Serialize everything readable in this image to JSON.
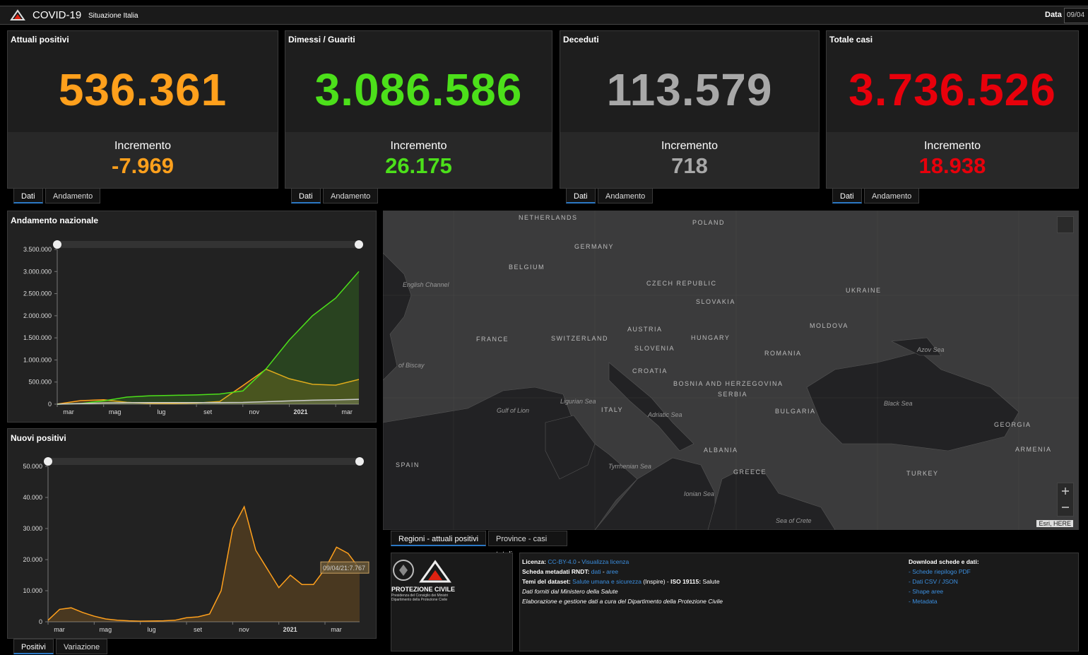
{
  "header": {
    "title": "COVID-19",
    "subtitle": "Situazione Italia",
    "date_label": "Data",
    "date_value": "09/04"
  },
  "cards": [
    {
      "title": "Attuali positivi",
      "value": "536.361",
      "increment_label": "Incremento",
      "increment": "-7.969",
      "color": "#ffa01c",
      "tabs": [
        "Dati",
        "Andamento"
      ]
    },
    {
      "title": "Dimessi / Guariti",
      "value": "3.086.586",
      "increment_label": "Incremento",
      "increment": "26.175",
      "color": "#4ce01a",
      "tabs": [
        "Dati",
        "Andamento"
      ]
    },
    {
      "title": "Deceduti",
      "value": "113.579",
      "increment_label": "Incremento",
      "increment": "718",
      "color": "#a8a8a8",
      "tabs": [
        "Dati",
        "Andamento"
      ]
    },
    {
      "title": "Totale casi",
      "value": "3.736.526",
      "increment_label": "Incremento",
      "increment": "18.938",
      "color": "#e8000b",
      "tabs": [
        "Dati",
        "Andamento"
      ]
    }
  ],
  "chart_data": [
    {
      "type": "area",
      "title": "Andamento nazionale",
      "categories": [
        "mar",
        null,
        "mag",
        null,
        "lug",
        null,
        "set",
        null,
        "nov",
        null,
        "2021",
        null,
        "mar",
        null
      ],
      "series": [
        {
          "color": "#ffa01c",
          "values": [
            1500,
            80000,
            100000,
            42000,
            15000,
            12000,
            25000,
            60000,
            420000,
            790000,
            575000,
            450000,
            430000,
            560000
          ]
        },
        {
          "color": "#4ce01a",
          "values": [
            0,
            15000,
            75000,
            160000,
            190000,
            200000,
            210000,
            230000,
            300000,
            800000,
            1450000,
            2000000,
            2400000,
            3000000
          ]
        },
        {
          "color": "#cccccc",
          "values": [
            0,
            13000,
            28000,
            33000,
            35000,
            35000,
            35500,
            36000,
            39000,
            56000,
            74000,
            89000,
            98000,
            110000
          ]
        }
      ],
      "ylim": [
        0,
        3500000
      ],
      "yticks": [
        0,
        {
          "value": 500000,
          "label": "500.000"
        },
        {
          "value": 1000000,
          "label": "1.000.000"
        },
        {
          "value": 1500000,
          "label": "1.500.000"
        },
        {
          "value": 2000000,
          "label": "2.000.000"
        },
        {
          "value": 2500000,
          "label": "2.500.000"
        },
        {
          "value": 3000000,
          "label": "3.000.000"
        },
        {
          "value": 3500000,
          "label": "3.500.000"
        }
      ],
      "grid": false,
      "tabs": []
    },
    {
      "type": "area",
      "title": "Nuovi positivi",
      "categories": [
        "mar",
        null,
        null,
        null,
        "mag",
        null,
        null,
        null,
        "lug",
        null,
        null,
        null,
        "set",
        null,
        null,
        null,
        "nov",
        null,
        null,
        null,
        "2021",
        null,
        null,
        null,
        "mar",
        null,
        null,
        null
      ],
      "series": [
        {
          "color": "#ffa01c",
          "values": [
            500,
            4000,
            4500,
            3000,
            1800,
            900,
            500,
            300,
            200,
            250,
            300,
            500,
            1300,
            1600,
            2500,
            10000,
            30000,
            37000,
            23000,
            17000,
            11000,
            15000,
            12000,
            12000,
            17000,
            24000,
            22000,
            17000
          ]
        }
      ],
      "ylim": [
        0,
        50000
      ],
      "yticks": [
        0,
        {
          "value": 10000,
          "label": "10.000"
        },
        {
          "value": 20000,
          "label": "20.000"
        },
        {
          "value": 30000,
          "label": "30.000"
        },
        {
          "value": 40000,
          "label": "40.000"
        },
        {
          "value": 50000,
          "label": "50.000"
        }
      ],
      "grid": false,
      "annotation": "09/04/21:7.767",
      "tabs": [
        "Positivi",
        "Variazione"
      ]
    }
  ],
  "map": {
    "labels": [
      "NETHERLANDS",
      "POLAND",
      "GERMANY",
      "BELGIUM",
      "English Channel",
      "CZECH REPUBLIC",
      "UKRAINE",
      "SLOVAKIA",
      "MOLDOVA",
      "FRANCE",
      "SWITZERLAND",
      "AUSTRIA",
      "HUNGARY",
      "SLOVENIA",
      "ROMANIA",
      "Azov Sea",
      "of Biscay",
      "CROATIA",
      "BOSNIA AND HERZEGOVINA",
      "SERBIA",
      "Black Sea",
      "Ligurian Sea",
      "Gulf of Lion",
      "ITALY",
      "Adriatic Sea",
      "BULGARIA",
      "GEORGIA",
      "ALBANIA",
      "ARMENIA",
      "SPAIN",
      "Tyrrhenian Sea",
      "GREECE",
      "TURKEY",
      "Ionian Sea",
      "Sea of Crete"
    ],
    "attribution": "Esri, HERE",
    "tabs": [
      "Regioni - attuali positivi",
      "Province - casi totali"
    ]
  },
  "footer": {
    "logo_text": "PROTEZIONE CIVILE",
    "logo_sub": [
      "Presidenza del Consiglio dei Ministri",
      "Dipartimento della Protezione Civile"
    ],
    "lines": [
      [
        {
          "t": "Licenza:",
          "s": "b"
        },
        {
          "t": " CC-BY-4.0",
          "s": "a"
        },
        {
          "t": " - "
        },
        {
          "t": "Visualizza licenza",
          "s": "a"
        }
      ],
      [
        {
          "t": "Scheda metadati RNDT:",
          "s": "b"
        },
        {
          "t": " dati",
          "s": "a"
        },
        {
          "t": " - "
        },
        {
          "t": "aree",
          "s": "a"
        }
      ],
      [
        {
          "t": "Temi del dataset:",
          "s": "b"
        },
        {
          "t": " Salute umana e sicurezza",
          "s": "a"
        },
        {
          "t": " (Inspire) - "
        },
        {
          "t": "ISO 19115:",
          "s": "b"
        },
        {
          "t": " Salute"
        }
      ],
      [
        {
          "t": "Dati forniti dal Ministero della Salute",
          "s": "i"
        }
      ],
      [
        {
          "t": "Elaborazione e gestione dati a cura del Dipartimento della Protezione Civile",
          "s": "i"
        }
      ]
    ],
    "downloads_title": "Download schede e dati:",
    "downloads": [
      "- Schede riepilogo PDF",
      "- Dati CSV / JSON",
      "- Shape aree",
      "- Metadata"
    ]
  }
}
